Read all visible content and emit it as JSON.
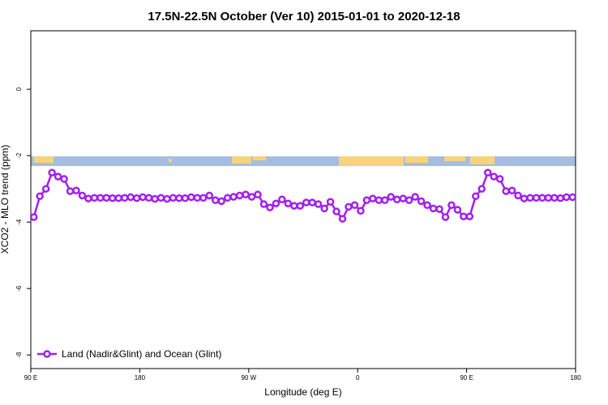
{
  "chart_data": {
    "type": "line",
    "title": "17.5N-22.5N October (Ver 10)   2015-01-01 to 2020-12-18",
    "xlabel": "Longitude (deg E)",
    "ylabel": "XCO2 - MLO trend (ppm)",
    "x": [
      92.5,
      97.5,
      102.5,
      107.5,
      112.5,
      117.5,
      122.5,
      127.5,
      132.5,
      137.5,
      142.5,
      147.5,
      152.5,
      157.5,
      162.5,
      167.5,
      172.5,
      177.5,
      182.5,
      187.5,
      192.5,
      197.5,
      202.5,
      207.5,
      212.5,
      217.5,
      222.5,
      227.5,
      232.5,
      237.5,
      242.5,
      247.5,
      252.5,
      257.5,
      262.5,
      267.5,
      272.5,
      277.5,
      282.5,
      287.5,
      292.5,
      297.5,
      302.5,
      307.5,
      312.5,
      317.5,
      322.5,
      327.5,
      332.5,
      337.5,
      342.5,
      347.5,
      352.5,
      357.5,
      362.5,
      367.5,
      372.5,
      377.5,
      382.5,
      387.5,
      392.5,
      397.5,
      402.5,
      407.5,
      412.5,
      417.5,
      422.5,
      427.5,
      432.5,
      437.5,
      442.5,
      447.5,
      452.5,
      457.5,
      462.5,
      467.5,
      472.5,
      477.5,
      482.5,
      487.5,
      492.5,
      497.5,
      502.5,
      507.5,
      512.5,
      517.5,
      522.5,
      527.5,
      532.5,
      537.5
    ],
    "series": [
      {
        "name": "Land (Nadir&Glint) and Ocean (Glint)",
        "color": "#a020f0",
        "values": [
          -3.85,
          -3.22,
          -3.0,
          -2.51,
          -2.63,
          -2.7,
          -3.07,
          -3.05,
          -3.2,
          -3.29,
          -3.27,
          -3.27,
          -3.27,
          -3.28,
          -3.28,
          -3.27,
          -3.25,
          -3.28,
          -3.25,
          -3.27,
          -3.3,
          -3.27,
          -3.3,
          -3.27,
          -3.28,
          -3.28,
          -3.25,
          -3.27,
          -3.27,
          -3.2,
          -3.34,
          -3.37,
          -3.27,
          -3.24,
          -3.2,
          -3.17,
          -3.24,
          -3.17,
          -3.46,
          -3.56,
          -3.44,
          -3.32,
          -3.44,
          -3.51,
          -3.51,
          -3.41,
          -3.41,
          -3.46,
          -3.59,
          -3.39,
          -3.68,
          -3.9,
          -3.54,
          -3.49,
          -3.66,
          -3.34,
          -3.29,
          -3.34,
          -3.34,
          -3.24,
          -3.32,
          -3.29,
          -3.34,
          -3.24,
          -3.37,
          -3.49,
          -3.59,
          -3.61,
          -3.85,
          -3.49,
          -3.63,
          -3.83,
          -3.83,
          -3.22,
          -3.0,
          -2.51,
          -2.63,
          -2.7,
          -3.07,
          -3.05,
          -3.2,
          -3.29,
          -3.27,
          -3.27,
          -3.27,
          -3.27,
          -3.27,
          -3.28,
          -3.25,
          -3.25
        ]
      }
    ],
    "xlim": [
      90,
      540
    ],
    "xticks": [
      {
        "value": 90,
        "label": "90 E"
      },
      180,
      {
        "value": 270,
        "label": "90 W"
      },
      {
        "value": 360,
        "label": "0"
      },
      {
        "value": 450,
        "label": "90 E"
      },
      {
        "value": 540,
        "label": "180"
      }
    ],
    "ylim": [
      -8.41,
      1.76
    ],
    "yticks": [
      0,
      -2,
      -4,
      -6,
      -8
    ],
    "legend": "bottomleft"
  }
}
